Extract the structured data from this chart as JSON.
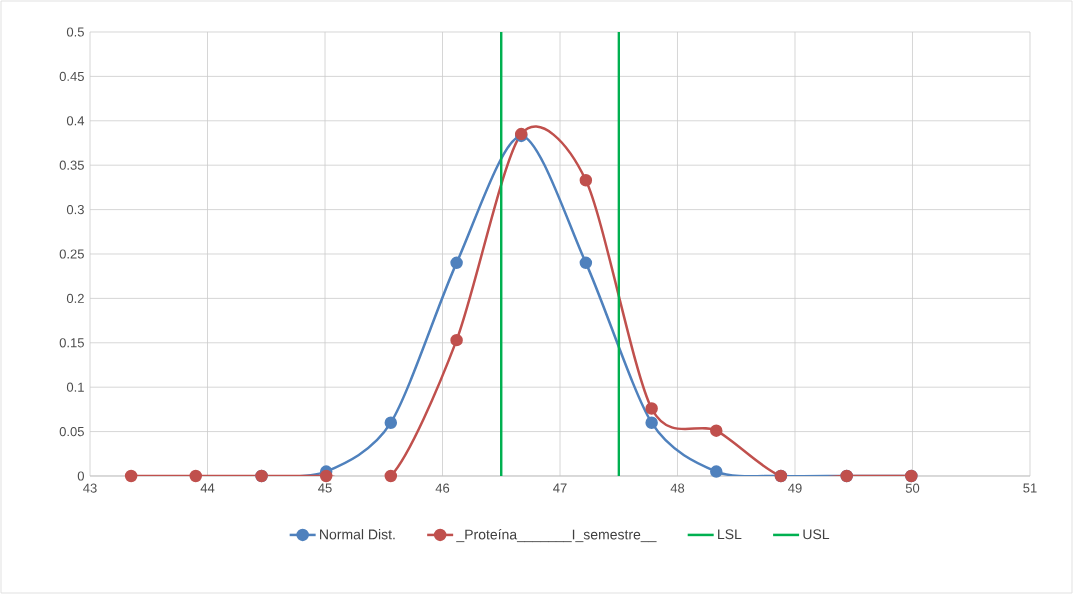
{
  "chart_data": {
    "type": "line",
    "x": [
      43.35,
      43.9,
      44.46,
      45.01,
      45.56,
      46.12,
      46.67,
      47.22,
      47.78,
      48.33,
      48.88,
      49.44,
      49.99
    ],
    "series": [
      {
        "name": "Normal Dist.",
        "color": "#4f81bd",
        "values": [
          null,
          null,
          0,
          0.005,
          0.06,
          0.24,
          0.383,
          0.24,
          0.06,
          0.005,
          0,
          0,
          0
        ]
      },
      {
        "name": "_Proteína_______I_semestre__",
        "color": "#c0504d",
        "values": [
          0,
          0,
          0,
          0,
          0,
          0.153,
          0.385,
          0.333,
          0.076,
          0.051,
          0,
          0,
          0
        ]
      }
    ],
    "ref_lines": [
      {
        "axis": "x",
        "value": 46.5,
        "label": "LSL",
        "color": "#00b050"
      },
      {
        "axis": "x",
        "value": 47.5,
        "label": "USL",
        "color": "#00b050"
      }
    ],
    "xlim": [
      43,
      51
    ],
    "xticks": [
      43,
      44,
      45,
      46,
      47,
      48,
      49,
      50,
      51
    ],
    "ylim": [
      0,
      0.5
    ],
    "yticks": [
      0,
      0.05,
      0.1,
      0.15,
      0.2,
      0.25,
      0.3,
      0.35,
      0.4,
      0.45,
      0.5
    ],
    "grid": true,
    "legend": "bottom",
    "marker": "circle",
    "line_style": "solid"
  }
}
